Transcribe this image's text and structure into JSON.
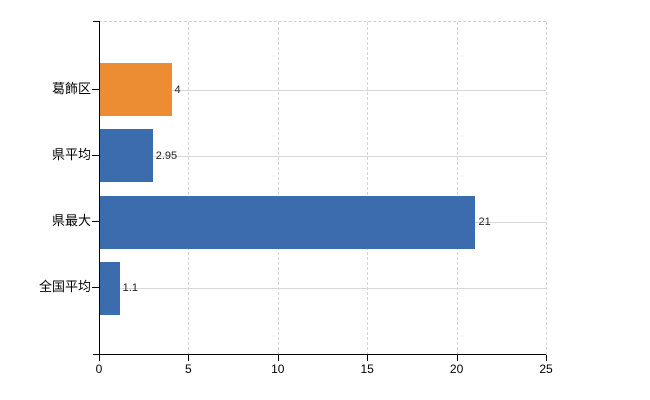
{
  "chart_data": {
    "type": "bar",
    "orientation": "horizontal",
    "title": "",
    "xlabel": "",
    "ylabel": "",
    "categories": [
      "葛飾区",
      "県平均",
      "県最大",
      "全国平均"
    ],
    "values": [
      4,
      2.95,
      21,
      1.1
    ],
    "value_labels": [
      "4",
      "2.95",
      "21",
      "1.1"
    ],
    "bar_colors": [
      "#EC8C33",
      "#3C6CAD",
      "#3C6CAD",
      "#3C6CAD"
    ],
    "xlim": [
      0,
      25
    ],
    "x_ticks": [
      0,
      5,
      10,
      15,
      20,
      25
    ],
    "x_tick_labels": [
      "0",
      "5",
      "10",
      "15",
      "20",
      "25"
    ],
    "grid": true,
    "legend": "none",
    "background_color": "#ffffff",
    "gridline_color": "#d8d8d8",
    "axis_color": "#000000"
  }
}
